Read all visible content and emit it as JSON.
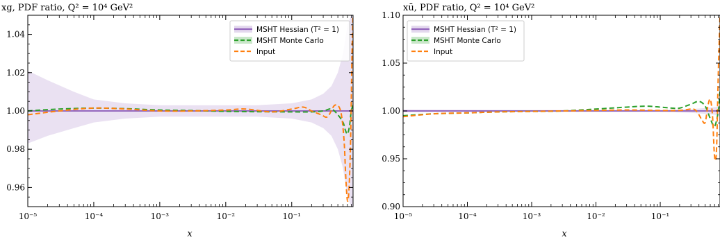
{
  "chart_data": [
    {
      "type": "line",
      "title": "xg, PDF ratio, Q² = 10⁴ GeV²",
      "xlabel": "x",
      "ylabel": "",
      "xscale": "log",
      "xlim": [
        1e-05,
        0.85
      ],
      "ylim": [
        0.95,
        1.05
      ],
      "yticks": [
        "0.96",
        "0.98",
        "1.00",
        "1.02",
        "1.04"
      ],
      "xticks": [
        "10⁻⁵",
        "10⁻⁴",
        "10⁻³",
        "10⁻²",
        "10⁻¹"
      ],
      "legend_position": "top-right",
      "series": [
        {
          "name": "MSHT Hessian (T² = 1)",
          "style": "solid",
          "color": "#9467bd",
          "x": [
            1e-05,
            0.85
          ],
          "y": [
            1.0,
            1.0
          ],
          "band": {
            "x": [
              1e-05,
              2e-05,
              5e-05,
              0.0001,
              0.0003,
              0.001,
              0.003,
              0.01,
              0.03,
              0.1,
              0.2,
              0.3,
              0.4,
              0.5,
              0.6,
              0.7,
              0.8,
              0.85
            ],
            "upper": [
              1.021,
              1.016,
              1.01,
              1.006,
              1.004,
              1.003,
              1.003,
              1.003,
              1.003,
              1.004,
              1.006,
              1.009,
              1.013,
              1.02,
              1.03,
              1.045,
              1.05,
              1.05
            ],
            "lower": [
              0.983,
              0.987,
              0.991,
              0.994,
              0.996,
              0.997,
              0.997,
              0.997,
              0.997,
              0.996,
              0.994,
              0.991,
              0.987,
              0.98,
              0.97,
              0.955,
              0.95,
              0.95
            ]
          }
        },
        {
          "name": "MSHT Monte Carlo",
          "style": "dashed",
          "color": "#2ca02c",
          "x": [
            1e-05,
            3e-05,
            0.0001,
            0.0003,
            0.001,
            0.003,
            0.01,
            0.03,
            0.1,
            0.2,
            0.3,
            0.4,
            0.5,
            0.6,
            0.65,
            0.7,
            0.75,
            0.8,
            0.85
          ],
          "y": [
            1.0,
            1.001,
            1.0015,
            1.0012,
            1.0005,
            1.0002,
            0.9998,
            0.9996,
            0.9995,
            0.9995,
            1.0,
            1.001,
            0.998,
            0.994,
            0.99,
            0.988,
            0.992,
            1.0,
            1.003
          ]
        },
        {
          "name": "Input",
          "style": "dashed",
          "color": "#ff7f0e",
          "x": [
            1e-05,
            3e-05,
            0.0001,
            0.0003,
            0.001,
            0.003,
            0.01,
            0.02,
            0.05,
            0.1,
            0.15,
            0.2,
            0.28,
            0.35,
            0.45,
            0.55,
            0.62,
            0.66,
            0.7,
            0.74,
            0.78,
            0.82,
            0.85
          ],
          "y": [
            0.998,
            1.0,
            1.0015,
            1.001,
            1.0,
            1.0,
            1.0005,
            1.001,
            0.9995,
            1.001,
            1.002,
            1.0,
            0.998,
            0.997,
            1.003,
            1.0,
            0.985,
            0.965,
            0.953,
            0.96,
            0.985,
            1.03,
            1.05
          ]
        }
      ]
    },
    {
      "type": "line",
      "title": "xū, PDF ratio, Q² = 10⁴ GeV²",
      "xlabel": "x",
      "ylabel": "",
      "xscale": "log",
      "xlim": [
        1e-05,
        0.85
      ],
      "ylim": [
        0.9,
        1.1
      ],
      "yticks": [
        "0.90",
        "0.95",
        "1.00",
        "1.05",
        "1.10"
      ],
      "xticks": [
        "10⁻⁵",
        "10⁻⁴",
        "10⁻³",
        "10⁻²",
        "10⁻¹"
      ],
      "legend_position": "top-left",
      "series": [
        {
          "name": "MSHT Hessian (T² = 1)",
          "style": "solid",
          "color": "#9467bd",
          "x": [
            1e-05,
            0.85
          ],
          "y": [
            1.0,
            1.0
          ],
          "band": {
            "x": [
              1e-05,
              0.001,
              0.1,
              0.3,
              0.5,
              0.7,
              0.85
            ],
            "upper": [
              1.0015,
              1.001,
              1.001,
              1.002,
              1.003,
              1.004,
              1.005
            ],
            "lower": [
              0.9985,
              0.999,
              0.999,
              0.998,
              0.997,
              0.996,
              0.995
            ]
          }
        },
        {
          "name": "MSHT Monte Carlo",
          "style": "dashed",
          "color": "#2ca02c",
          "x": [
            1e-05,
            3e-05,
            0.0001,
            0.0003,
            0.001,
            0.003,
            0.01,
            0.03,
            0.06,
            0.1,
            0.15,
            0.2,
            0.3,
            0.4,
            0.5,
            0.6,
            0.7,
            0.8,
            0.85
          ],
          "y": [
            0.995,
            0.997,
            0.998,
            0.999,
            0.9995,
            1.0,
            1.002,
            1.004,
            1.005,
            1.004,
            1.003,
            1.003,
            1.007,
            1.01,
            1.005,
            0.992,
            0.984,
            1.0,
            1.02
          ]
        },
        {
          "name": "Input",
          "style": "dashed",
          "color": "#ff7f0e",
          "x": [
            1e-05,
            3e-05,
            0.0001,
            0.0003,
            0.001,
            0.003,
            0.01,
            0.03,
            0.1,
            0.2,
            0.3,
            0.35,
            0.4,
            0.45,
            0.5,
            0.55,
            0.6,
            0.65,
            0.7,
            0.75,
            0.8,
            0.85
          ],
          "y": [
            0.994,
            0.997,
            0.998,
            0.999,
            0.9995,
            1.0,
            1.0005,
            1.001,
            1.0005,
            1.0005,
            1.002,
            1.001,
            0.996,
            0.99,
            0.988,
            1.005,
            1.012,
            0.995,
            0.952,
            0.96,
            1.04,
            1.1
          ]
        }
      ]
    }
  ],
  "legend_labels": {
    "hessian": "MSHT Hessian (T² = 1)",
    "mc": "MSHT Monte Carlo",
    "input": "Input"
  }
}
